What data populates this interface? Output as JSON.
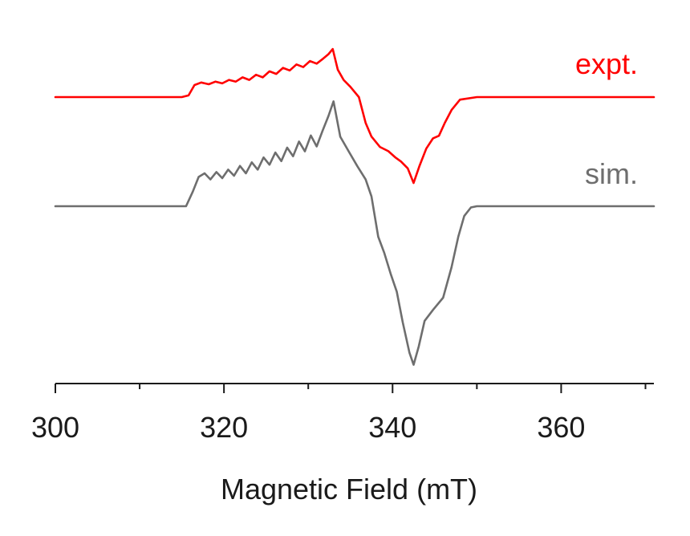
{
  "chart_data": {
    "type": "line",
    "title": "",
    "xlabel": "Magnetic Field (mT)",
    "ylabel": "",
    "xlim": [
      300,
      371
    ],
    "x_ticks_major": [
      300,
      320,
      340,
      360
    ],
    "x_ticks_minor": [
      310,
      330,
      350,
      370
    ],
    "grid": false,
    "legend": "inline labels at right of each trace",
    "series": [
      {
        "name": "expt.",
        "color": "#ff0000",
        "x": [
          300,
          315,
          315.8,
          316.5,
          317.3,
          318.2,
          319,
          319.8,
          320.6,
          321.4,
          322.2,
          323,
          323.8,
          324.6,
          325.4,
          326.2,
          327,
          327.8,
          328.6,
          329.4,
          330.2,
          331,
          331.8,
          332.4,
          332.9,
          333.5,
          334.2,
          335,
          336,
          336.8,
          337.5,
          338.5,
          339.5,
          340.3,
          341,
          341.8,
          342.5,
          343.2,
          344,
          344.8,
          345.5,
          346.2,
          347,
          348,
          350,
          360,
          371
        ],
        "y": [
          0,
          0,
          0.02,
          0.14,
          0.17,
          0.15,
          0.18,
          0.16,
          0.2,
          0.18,
          0.23,
          0.2,
          0.26,
          0.23,
          0.3,
          0.27,
          0.34,
          0.31,
          0.38,
          0.35,
          0.42,
          0.39,
          0.45,
          0.5,
          0.56,
          0.32,
          0.2,
          0.12,
          0.0,
          -0.3,
          -0.46,
          -0.58,
          -0.63,
          -0.7,
          -0.75,
          -0.83,
          -1.0,
          -0.8,
          -0.6,
          -0.48,
          -0.45,
          -0.3,
          -0.15,
          -0.03,
          0,
          0,
          0
        ]
      },
      {
        "name": "sim.",
        "color": "#6e6e6e",
        "x": [
          300,
          315.5,
          316.3,
          317,
          317.7,
          318.4,
          319.1,
          319.8,
          320.5,
          321.2,
          321.9,
          322.6,
          323.3,
          324,
          324.7,
          325.4,
          326.1,
          326.8,
          327.5,
          328.2,
          328.9,
          329.6,
          330.3,
          331,
          331.7,
          332.4,
          333,
          333.8,
          334.8,
          335.8,
          336.8,
          337.5,
          338.3,
          339,
          339.8,
          340.5,
          341.2,
          342,
          342.5,
          343.1,
          343.8,
          344.8,
          346,
          347,
          347.8,
          348.5,
          349.3,
          350,
          360,
          371
        ],
        "y": [
          0,
          0,
          0.12,
          0.24,
          0.27,
          0.22,
          0.28,
          0.23,
          0.3,
          0.25,
          0.33,
          0.27,
          0.36,
          0.3,
          0.4,
          0.34,
          0.44,
          0.37,
          0.48,
          0.41,
          0.53,
          0.45,
          0.58,
          0.49,
          0.62,
          0.74,
          0.86,
          0.57,
          0.45,
          0.33,
          0.22,
          0.08,
          -0.25,
          -0.38,
          -0.56,
          -0.7,
          -0.95,
          -1.2,
          -1.3,
          -1.15,
          -0.94,
          -0.85,
          -0.75,
          -0.5,
          -0.25,
          -0.08,
          -0.01,
          0,
          0,
          0
        ]
      }
    ]
  }
}
